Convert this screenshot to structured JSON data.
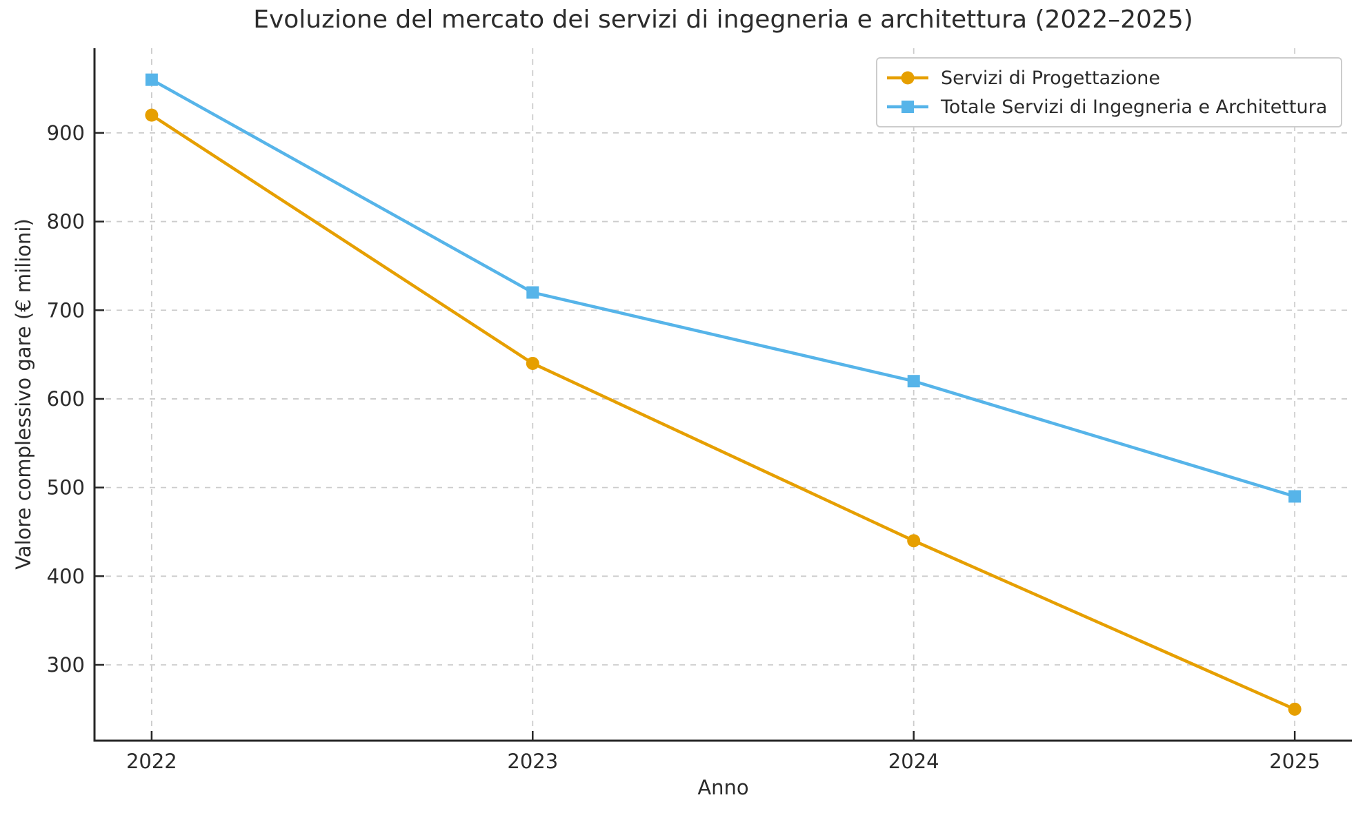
{
  "chart_data": {
    "type": "line",
    "title": "Evoluzione del mercato dei servizi di ingegneria e architettura (2022–2025)",
    "xlabel": "Anno",
    "ylabel": "Valore complessivo gare (€ milioni)",
    "categories": [
      "2022",
      "2023",
      "2024",
      "2025"
    ],
    "y_ticks": [
      300,
      400,
      500,
      600,
      700,
      800,
      900
    ],
    "ylim": [
      214.5,
      995.5
    ],
    "grid": "dashed gray, horizontal and vertical",
    "legend_position": "upper right",
    "series": [
      {
        "name": "Servizi di Progettazione",
        "marker": "circle",
        "color": "#E69F00",
        "values": [
          920,
          640,
          440,
          250
        ]
      },
      {
        "name": "Totale Servizi di Ingegneria e Architettura",
        "marker": "square",
        "color": "#56B4E9",
        "values": [
          960,
          720,
          620,
          490
        ]
      }
    ],
    "styles": {
      "grid_color": "#cccccc",
      "spine_color": "#262626",
      "text_color": "#2b2b2b",
      "background": "#ffffff"
    }
  }
}
